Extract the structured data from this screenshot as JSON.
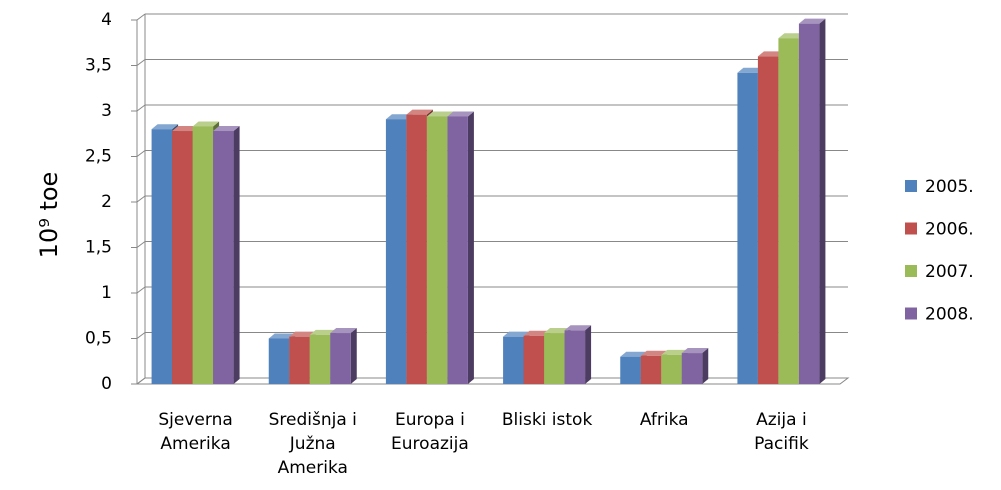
{
  "chart_data": {
    "type": "bar3d",
    "y_label": "10⁹ toe",
    "categories": [
      "Sjeverna Amerika",
      "Središnja i Južna Amerika",
      "Europa i Euroazija",
      "Bliski istok",
      "Afrika",
      "Azija i Pacifik"
    ],
    "series": [
      {
        "name": "2005.",
        "color": "#4f81bd",
        "values": [
          2.8,
          0.5,
          2.91,
          0.52,
          0.3,
          3.42
        ]
      },
      {
        "name": "2006.",
        "color": "#c0504d",
        "values": [
          2.78,
          0.52,
          2.96,
          0.53,
          0.31,
          3.6
        ]
      },
      {
        "name": "2007.",
        "color": "#9bbb59",
        "values": [
          2.83,
          0.54,
          2.94,
          0.56,
          0.32,
          3.8
        ]
      },
      {
        "name": "2008.",
        "color": "#8064a2",
        "values": [
          2.78,
          0.56,
          2.94,
          0.59,
          0.34,
          3.96
        ]
      }
    ],
    "ylim": [
      0,
      4
    ],
    "yticks": [
      0,
      {
        "value": 0.5,
        "label": "0,5"
      },
      1,
      {
        "value": 1.5,
        "label": "1,5"
      },
      2,
      {
        "value": 2.5,
        "label": "2,5"
      },
      3,
      {
        "value": 3.5,
        "label": "3,5"
      },
      4
    ],
    "grid": true,
    "legend": "right"
  }
}
